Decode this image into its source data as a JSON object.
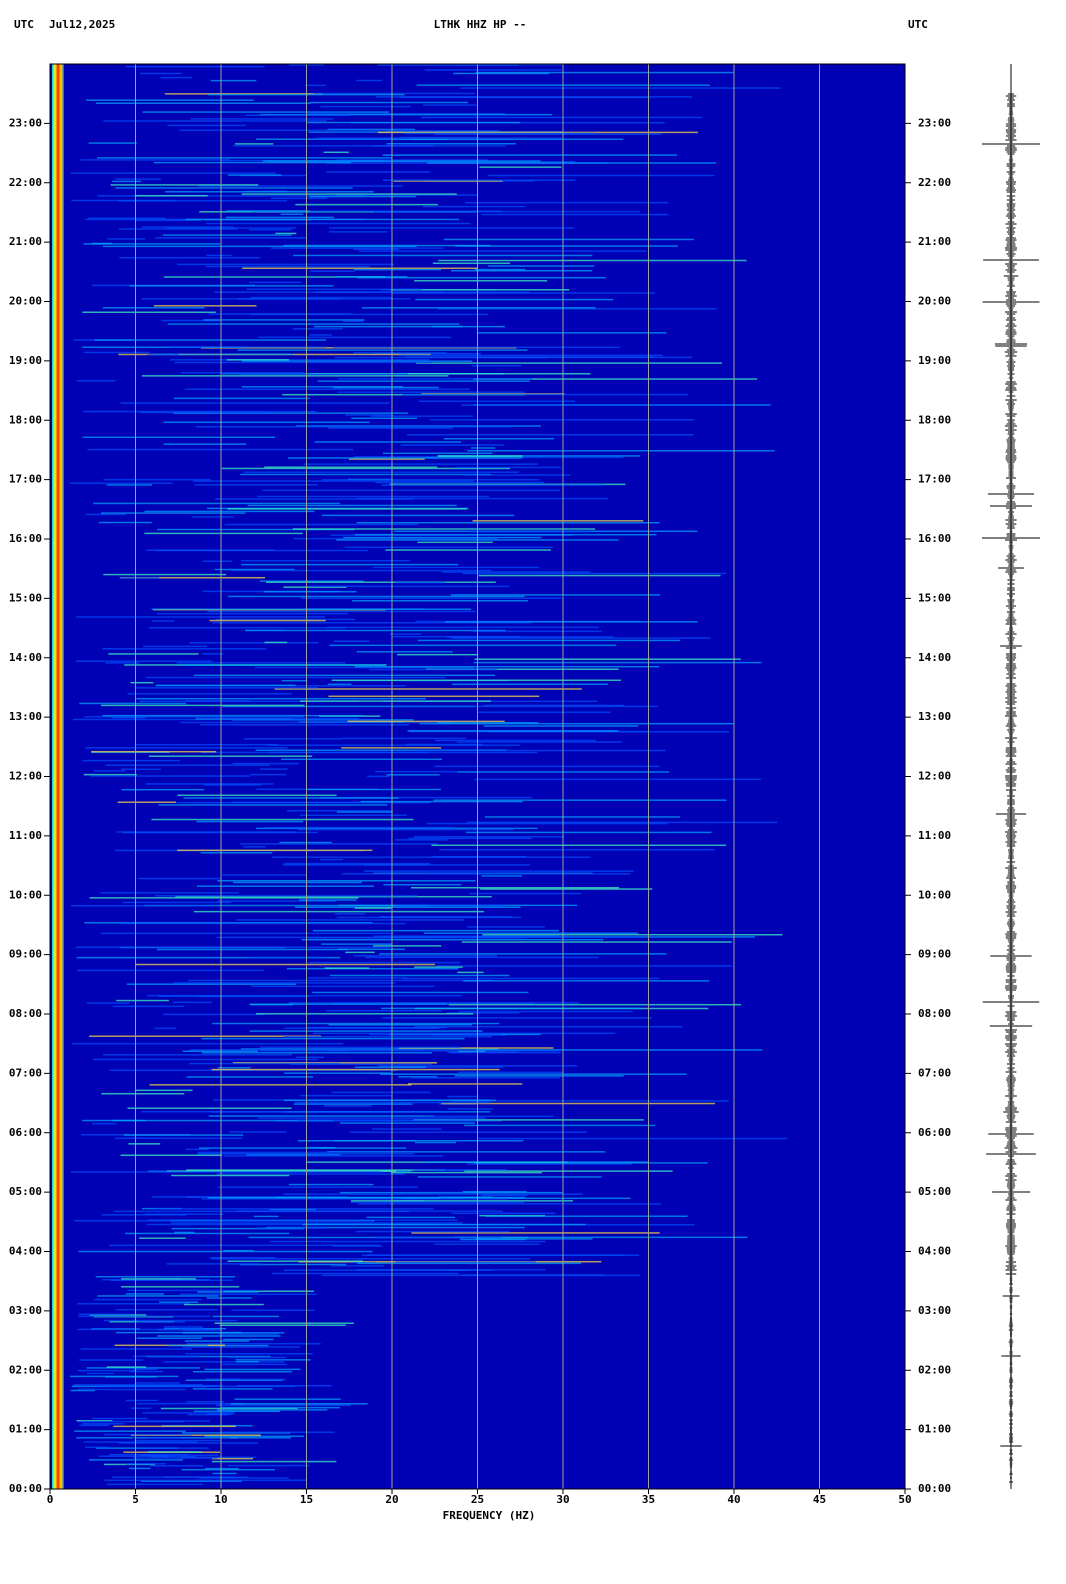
{
  "chart_data": {
    "type": "spectrogram",
    "title_left": "UTC",
    "date": "Jul12,2025",
    "title": "LTHK HHZ HP --",
    "title_right": "UTC",
    "xlabel": "FREQUENCY (HZ)",
    "xlim": [
      0,
      50
    ],
    "xticks": [
      0,
      5,
      10,
      15,
      20,
      25,
      30,
      35,
      40,
      45,
      50
    ],
    "ylim": [
      0,
      24
    ],
    "yticks": [
      {
        "value": 0,
        "label": "00:00"
      },
      {
        "value": 1,
        "label": "01:00"
      },
      {
        "value": 2,
        "label": "02:00"
      },
      {
        "value": 3,
        "label": "03:00"
      },
      {
        "value": 4,
        "label": "04:00"
      },
      {
        "value": 5,
        "label": "05:00"
      },
      {
        "value": 6,
        "label": "06:00"
      },
      {
        "value": 7,
        "label": "07:00"
      },
      {
        "value": 8,
        "label": "08:00"
      },
      {
        "value": 9,
        "label": "09:00"
      },
      {
        "value": 10,
        "label": "10:00"
      },
      {
        "value": 11,
        "label": "11:00"
      },
      {
        "value": 12,
        "label": "12:00"
      },
      {
        "value": 13,
        "label": "13:00"
      },
      {
        "value": 14,
        "label": "14:00"
      },
      {
        "value": 15,
        "label": "15:00"
      },
      {
        "value": 16,
        "label": "16:00"
      },
      {
        "value": 17,
        "label": "17:00"
      },
      {
        "value": 18,
        "label": "18:00"
      },
      {
        "value": 19,
        "label": "19:00"
      },
      {
        "value": 20,
        "label": "20:00"
      },
      {
        "value": 21,
        "label": "21:00"
      },
      {
        "value": 22,
        "label": "22:00"
      },
      {
        "value": 23,
        "label": "23:00"
      }
    ],
    "grid": true,
    "background_color": "#0000b4",
    "grid_color": "#a0a0a0"
  }
}
